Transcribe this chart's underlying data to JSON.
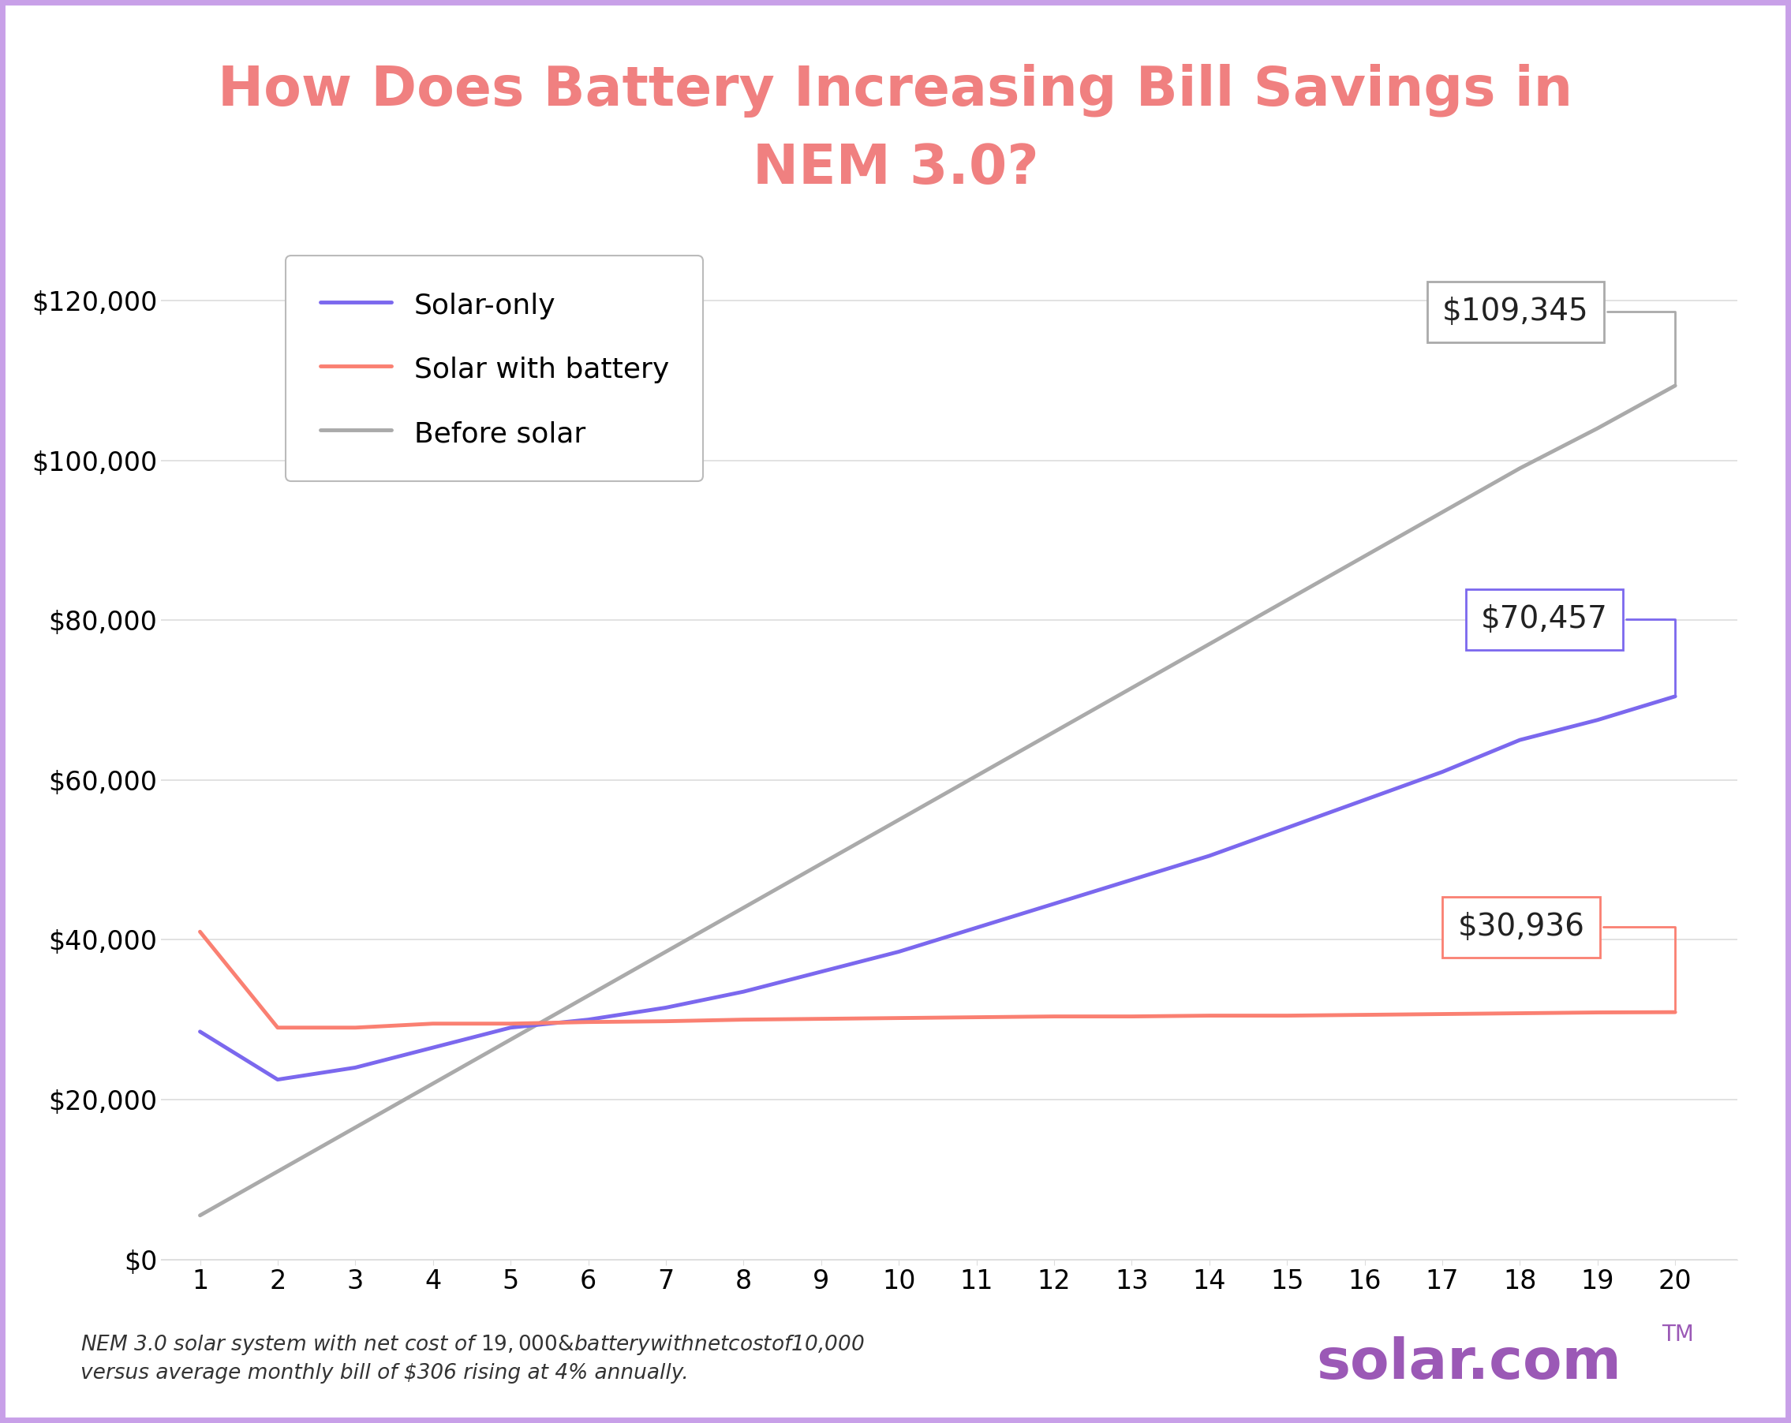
{
  "title_line1": "How Does Battery Increasing Bill Savings in",
  "title_line2": "NEM 3.0?",
  "title_color": "#F08080",
  "background_color": "#FFFFFF",
  "border_color": "#C8A0E8",
  "x_values": [
    1,
    2,
    3,
    4,
    5,
    6,
    7,
    8,
    9,
    10,
    11,
    12,
    13,
    14,
    15,
    16,
    17,
    18,
    19,
    20
  ],
  "solar_only": [
    28500,
    22500,
    24000,
    26500,
    29000,
    30000,
    31500,
    33500,
    36000,
    38500,
    41500,
    44500,
    47500,
    50500,
    54000,
    57500,
    61000,
    65000,
    67500,
    70457
  ],
  "solar_battery": [
    41000,
    29000,
    29000,
    29500,
    29500,
    29700,
    29800,
    30000,
    30100,
    30200,
    30300,
    30400,
    30400,
    30500,
    30500,
    30600,
    30700,
    30800,
    30900,
    30936
  ],
  "before_solar": [
    5500,
    11000,
    16500,
    22000,
    27500,
    33000,
    38500,
    44000,
    49500,
    55000,
    60500,
    66000,
    71500,
    77000,
    82500,
    88000,
    93500,
    99000,
    104000,
    109345
  ],
  "solar_only_color": "#7B68EE",
  "solar_battery_color": "#FA8072",
  "before_solar_color": "#AAAAAA",
  "solar_only_label": "Solar-only",
  "solar_battery_label": "Solar with battery",
  "before_solar_label": "Before solar",
  "annotation_before": "$109,345",
  "annotation_before_color": "#AAAAAA",
  "annotation_solar_only": "$70,457",
  "annotation_solar_only_color": "#7B68EE",
  "annotation_solar_battery": "$30,936",
  "annotation_solar_battery_color": "#FA8072",
  "ylim": [
    0,
    130000
  ],
  "ylabel_ticks": [
    0,
    20000,
    40000,
    60000,
    80000,
    100000,
    120000
  ],
  "ytick_labels": [
    "$0",
    "$20,000",
    "$40,000",
    "$60,000",
    "$80,000",
    "$100,000",
    "$120,000"
  ],
  "footnote_line1": "NEM 3.0 solar system with net cost of $19,000 & battery with net cost of $10,000",
  "footnote_line2": "versus average monthly bill of $306 rising at 4% annually.",
  "solarcom_color": "#9B59B6",
  "line_width": 3.5
}
